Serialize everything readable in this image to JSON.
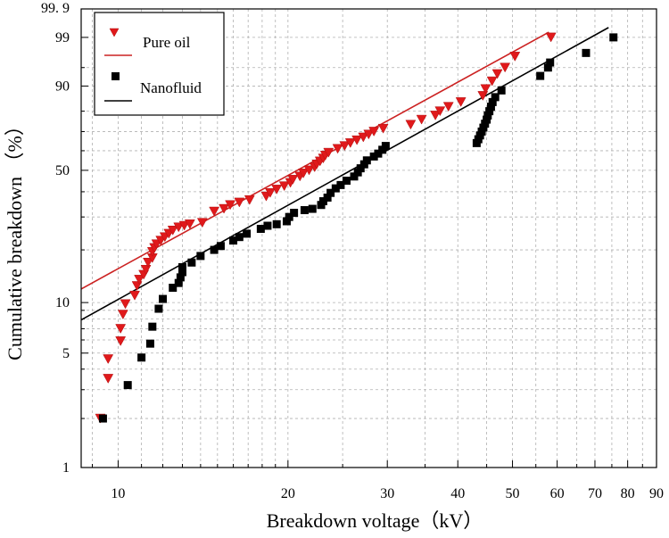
{
  "chart_data": {
    "type": "scatter",
    "subtype": "weibull-probability",
    "title": "",
    "xlabel": "Breakdown voltage（kV）",
    "ylabel": "Cumulative breakdown  （%）",
    "x_scale": "log",
    "y_scale": "weibull",
    "xlim": [
      8.6,
      90
    ],
    "ylim": [
      1,
      99.9
    ],
    "x_ticks_labeled": [
      "10",
      "20",
      "30",
      "40",
      "50",
      "60",
      "70",
      "80",
      "90"
    ],
    "x_ticks_labeled_values": [
      10,
      20,
      30,
      40,
      50,
      60,
      70,
      80,
      90
    ],
    "x_minor_ticks": [
      9,
      11,
      12,
      13,
      14,
      15,
      16,
      17,
      18,
      19,
      25,
      35,
      45,
      55,
      65,
      75,
      85
    ],
    "y_ticks": [
      "1",
      "5",
      "10",
      "50",
      "90",
      "99",
      "99. 9"
    ],
    "y_ticks_values": [
      1,
      5,
      10,
      50,
      90,
      99,
      99.9
    ],
    "y_minor_ticks": [
      2,
      3,
      4,
      6,
      7,
      8,
      9,
      20,
      30,
      40,
      60,
      70,
      80,
      95
    ],
    "grid": true,
    "legend_position": "top-left",
    "series": [
      {
        "name": "Pure oil",
        "marker": "triangle-down",
        "color": "#e0191b",
        "fit_line_color": "#cc2222",
        "fit_line": {
          "x": [
            8.6,
            58
          ],
          "y": [
            12.0,
            99.3
          ]
        },
        "points": [
          {
            "x": 9.3,
            "y": 2.0
          },
          {
            "x": 9.6,
            "y": 3.5
          },
          {
            "x": 9.6,
            "y": 4.6
          },
          {
            "x": 10.1,
            "y": 5.9
          },
          {
            "x": 10.1,
            "y": 7.0
          },
          {
            "x": 10.2,
            "y": 8.5
          },
          {
            "x": 10.3,
            "y": 9.8
          },
          {
            "x": 10.7,
            "y": 11.0
          },
          {
            "x": 10.8,
            "y": 12.5
          },
          {
            "x": 10.9,
            "y": 13.6
          },
          {
            "x": 11.1,
            "y": 14.5
          },
          {
            "x": 11.2,
            "y": 15.5
          },
          {
            "x": 11.3,
            "y": 17.0
          },
          {
            "x": 11.5,
            "y": 18.0
          },
          {
            "x": 11.5,
            "y": 19.5
          },
          {
            "x": 11.6,
            "y": 20.5
          },
          {
            "x": 11.7,
            "y": 21.5
          },
          {
            "x": 11.9,
            "y": 22.5
          },
          {
            "x": 12.1,
            "y": 23.5
          },
          {
            "x": 12.3,
            "y": 24.5
          },
          {
            "x": 12.5,
            "y": 25.5
          },
          {
            "x": 12.8,
            "y": 26.5
          },
          {
            "x": 13.1,
            "y": 27.0
          },
          {
            "x": 13.4,
            "y": 27.5
          },
          {
            "x": 14.1,
            "y": 28.0
          },
          {
            "x": 14.8,
            "y": 32.0
          },
          {
            "x": 15.4,
            "y": 33.0
          },
          {
            "x": 15.8,
            "y": 34.5
          },
          {
            "x": 16.4,
            "y": 35.5
          },
          {
            "x": 17.1,
            "y": 36.5
          },
          {
            "x": 18.3,
            "y": 38.0
          },
          {
            "x": 18.6,
            "y": 39.5
          },
          {
            "x": 19.1,
            "y": 41.0
          },
          {
            "x": 19.7,
            "y": 42.5
          },
          {
            "x": 20.2,
            "y": 44.0
          },
          {
            "x": 20.4,
            "y": 45.5
          },
          {
            "x": 21.0,
            "y": 47.0
          },
          {
            "x": 21.3,
            "y": 48.5
          },
          {
            "x": 21.8,
            "y": 50.0
          },
          {
            "x": 22.3,
            "y": 51.5
          },
          {
            "x": 22.5,
            "y": 53.0
          },
          {
            "x": 22.8,
            "y": 54.5
          },
          {
            "x": 23.1,
            "y": 56.0
          },
          {
            "x": 23.3,
            "y": 57.5
          },
          {
            "x": 23.6,
            "y": 59.0
          },
          {
            "x": 24.5,
            "y": 61.0
          },
          {
            "x": 25.2,
            "y": 62.5
          },
          {
            "x": 25.8,
            "y": 64.0
          },
          {
            "x": 26.5,
            "y": 65.5
          },
          {
            "x": 27.2,
            "y": 67.0
          },
          {
            "x": 27.8,
            "y": 68.5
          },
          {
            "x": 28.4,
            "y": 70.0
          },
          {
            "x": 29.5,
            "y": 71.5
          },
          {
            "x": 33.0,
            "y": 73.5
          },
          {
            "x": 34.5,
            "y": 76.0
          },
          {
            "x": 36.5,
            "y": 78.0
          },
          {
            "x": 37.2,
            "y": 80.0
          },
          {
            "x": 38.5,
            "y": 82.0
          },
          {
            "x": 40.5,
            "y": 84.0
          },
          {
            "x": 44.3,
            "y": 86.5
          },
          {
            "x": 44.8,
            "y": 89.0
          },
          {
            "x": 46.0,
            "y": 91.5
          },
          {
            "x": 47.0,
            "y": 93.5
          },
          {
            "x": 48.5,
            "y": 95.0
          },
          {
            "x": 50.5,
            "y": 97.0
          },
          {
            "x": 58.5,
            "y": 99.0
          }
        ]
      },
      {
        "name": "Nanofluid",
        "marker": "square",
        "color": "#000000",
        "fit_line_color": "#000000",
        "fit_line": {
          "x": [
            8.6,
            74
          ],
          "y": [
            7.9,
            99.5
          ]
        },
        "points": [
          {
            "x": 9.4,
            "y": 2.0
          },
          {
            "x": 10.4,
            "y": 3.2
          },
          {
            "x": 11.0,
            "y": 4.7
          },
          {
            "x": 11.4,
            "y": 5.7
          },
          {
            "x": 11.5,
            "y": 7.2
          },
          {
            "x": 11.8,
            "y": 9.2
          },
          {
            "x": 12.0,
            "y": 10.5
          },
          {
            "x": 12.5,
            "y": 12.2
          },
          {
            "x": 12.8,
            "y": 13.0
          },
          {
            "x": 12.9,
            "y": 14.0
          },
          {
            "x": 13.0,
            "y": 15.0
          },
          {
            "x": 13.0,
            "y": 16.0
          },
          {
            "x": 13.5,
            "y": 17.0
          },
          {
            "x": 14.0,
            "y": 18.5
          },
          {
            "x": 14.8,
            "y": 20.0
          },
          {
            "x": 15.2,
            "y": 21.0
          },
          {
            "x": 16.0,
            "y": 22.5
          },
          {
            "x": 16.4,
            "y": 23.5
          },
          {
            "x": 16.9,
            "y": 24.5
          },
          {
            "x": 17.9,
            "y": 26.0
          },
          {
            "x": 18.4,
            "y": 27.0
          },
          {
            "x": 19.1,
            "y": 27.5
          },
          {
            "x": 19.9,
            "y": 28.5
          },
          {
            "x": 20.1,
            "y": 30.0
          },
          {
            "x": 20.5,
            "y": 31.5
          },
          {
            "x": 21.4,
            "y": 32.5
          },
          {
            "x": 22.1,
            "y": 33.0
          },
          {
            "x": 22.9,
            "y": 34.5
          },
          {
            "x": 23.1,
            "y": 36.0
          },
          {
            "x": 23.5,
            "y": 37.5
          },
          {
            "x": 23.8,
            "y": 39.5
          },
          {
            "x": 24.3,
            "y": 41.5
          },
          {
            "x": 24.8,
            "y": 43.0
          },
          {
            "x": 25.4,
            "y": 45.0
          },
          {
            "x": 26.2,
            "y": 47.0
          },
          {
            "x": 26.6,
            "y": 49.0
          },
          {
            "x": 26.9,
            "y": 51.0
          },
          {
            "x": 27.3,
            "y": 53.0
          },
          {
            "x": 27.6,
            "y": 55.0
          },
          {
            "x": 28.4,
            "y": 57.0
          },
          {
            "x": 28.9,
            "y": 58.5
          },
          {
            "x": 29.4,
            "y": 60.5
          },
          {
            "x": 29.8,
            "y": 62.5
          },
          {
            "x": 43.2,
            "y": 64.0
          },
          {
            "x": 43.5,
            "y": 66.0
          },
          {
            "x": 43.8,
            "y": 68.0
          },
          {
            "x": 44.1,
            "y": 70.0
          },
          {
            "x": 44.4,
            "y": 72.0
          },
          {
            "x": 44.7,
            "y": 74.0
          },
          {
            "x": 45.0,
            "y": 76.0
          },
          {
            "x": 45.2,
            "y": 78.0
          },
          {
            "x": 45.5,
            "y": 80.0
          },
          {
            "x": 45.8,
            "y": 82.0
          },
          {
            "x": 46.1,
            "y": 84.0
          },
          {
            "x": 46.6,
            "y": 86.0
          },
          {
            "x": 47.8,
            "y": 88.5
          },
          {
            "x": 56.0,
            "y": 93.0
          },
          {
            "x": 57.8,
            "y": 95.0
          },
          {
            "x": 58.3,
            "y": 96.0
          },
          {
            "x": 67.5,
            "y": 97.5
          },
          {
            "x": 75.5,
            "y": 99.0
          }
        ]
      }
    ]
  }
}
